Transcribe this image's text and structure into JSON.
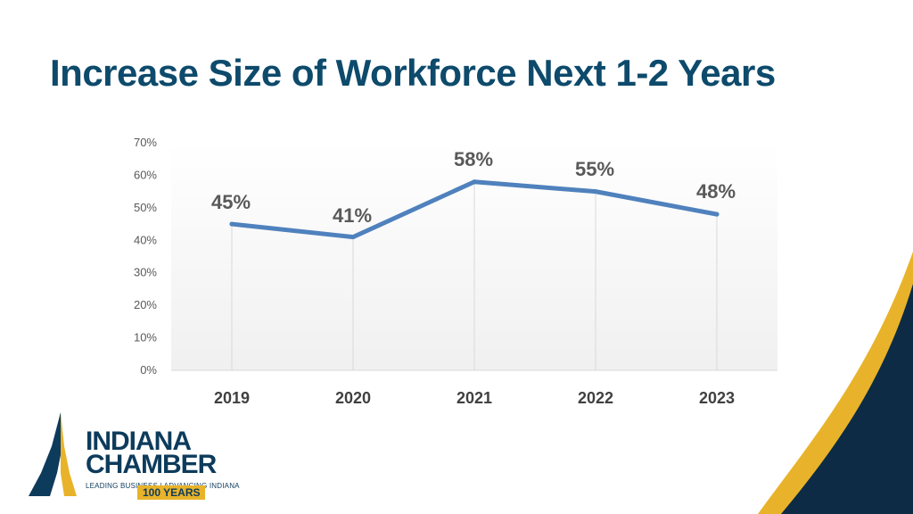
{
  "slide": {
    "title": "Increase Size of Workforce Next 1-2 Years"
  },
  "logo": {
    "line1": "INDIANA",
    "line2": "CHAMBER",
    "tagline": "LEADING BUSINESS | ADVANCING INDIANA",
    "years": "100 YEARS",
    "colors": {
      "navy": "#0d3b5c",
      "gold": "#e8b32a"
    }
  },
  "chart_data": {
    "type": "line",
    "categories": [
      "2019",
      "2020",
      "2021",
      "2022",
      "2023"
    ],
    "series": [
      {
        "values": [
          45,
          41,
          58,
          55,
          48
        ],
        "labels": [
          "45%",
          "41%",
          "58%",
          "55%",
          "48%"
        ],
        "color": "#4f81bd"
      }
    ],
    "yticks": [
      "0%",
      "10%",
      "20%",
      "30%",
      "40%",
      "50%",
      "60%",
      "70%"
    ],
    "ylim": [
      0,
      70
    ],
    "grid": "vertical",
    "legend": "none"
  },
  "decor": {
    "corner_navy": "#0d2b45",
    "corner_gold": "#e8b32a"
  }
}
